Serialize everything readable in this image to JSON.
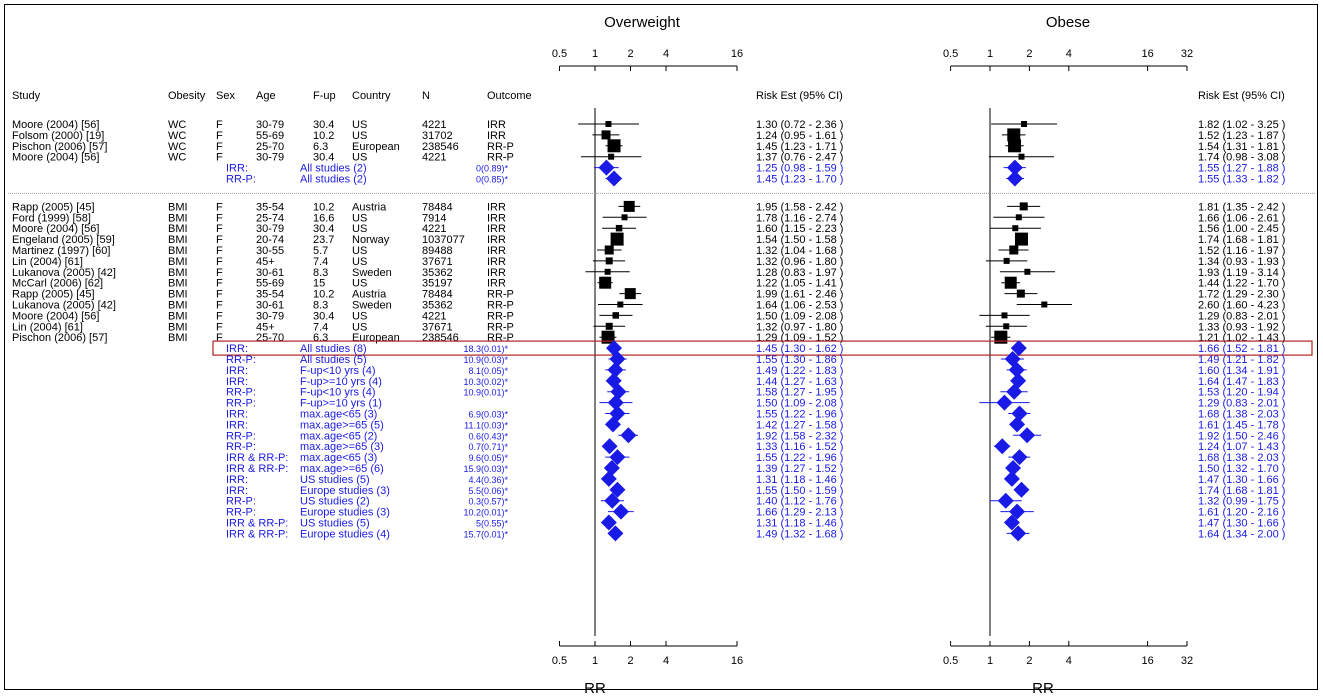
{
  "headers": {
    "study": "Study",
    "obesity": "Obesity",
    "sex": "Sex",
    "age": "Age",
    "fup": "F-up",
    "country": "Country",
    "n": "N",
    "outcome": "Outcome",
    "risk_ow": "Risk Est (95% CI)",
    "risk_ob": "Risk Est (95% CI)"
  },
  "panel_titles": {
    "overweight": "Overweight",
    "obese": "Obese"
  },
  "xlabel": "RR",
  "chart_data": {
    "type": "forest",
    "x_scale": "log",
    "reference_line": 1,
    "panels": [
      {
        "name": "Overweight",
        "xticks": [
          "0.5",
          "1",
          "2",
          "4",
          "16"
        ],
        "xlim": [
          0.5,
          16
        ]
      },
      {
        "name": "Obese",
        "xticks": [
          "0.5",
          "1",
          "2",
          "4",
          "16",
          "32"
        ],
        "xlim": [
          0.5,
          32
        ]
      }
    ],
    "rows": [
      {
        "kind": "study",
        "study": "Moore (2004) [56]",
        "obesity": "WC",
        "sex": "F",
        "age": "30-79",
        "fup": "30.4",
        "country": "US",
        "n": "4221",
        "outcome": "IRR",
        "ow": [
          1.3,
          0.72,
          2.36
        ],
        "ow_text": "1.30 (0.72 - 2.36 )",
        "ob": [
          1.82,
          1.02,
          3.25
        ],
        "ob_text": "1.82 (1.02 - 3.25 )",
        "ow_w": 0.3,
        "ob_w": 0.3
      },
      {
        "kind": "study",
        "study": "Folsom (2000) [19]",
        "obesity": "WC",
        "sex": "F",
        "age": "55-69",
        "fup": "10.2",
        "country": "US",
        "n": "31702",
        "outcome": "IRR",
        "ow": [
          1.24,
          0.95,
          1.61
        ],
        "ow_text": "1.24 (0.95 - 1.61 )",
        "ob": [
          1.52,
          1.23,
          1.87
        ],
        "ob_text": "1.52 (1.23 - 1.87 )",
        "ow_w": 0.6,
        "ob_w": 1.0
      },
      {
        "kind": "study",
        "study": "Pischon (2006) [57]",
        "obesity": "WC",
        "sex": "F",
        "age": "25-70",
        "fup": "6.3",
        "country": "European",
        "n": "238546",
        "outcome": "RR-P",
        "ow": [
          1.45,
          1.23,
          1.71
        ],
        "ow_text": "1.45 (1.23 - 1.71 )",
        "ob": [
          1.54,
          1.31,
          1.81
        ],
        "ob_text": "1.54 (1.31 - 1.81 )",
        "ow_w": 1.0,
        "ob_w": 1.0
      },
      {
        "kind": "study",
        "study": "Moore (2004) [56]",
        "obesity": "WC",
        "sex": "F",
        "age": "30-79",
        "fup": "30.4",
        "country": "US",
        "n": "4221",
        "outcome": "RR-P",
        "ow": [
          1.37,
          0.76,
          2.47
        ],
        "ow_text": "1.37 (0.76 - 2.47 )",
        "ob": [
          1.74,
          0.98,
          3.08
        ],
        "ob_text": "1.74 (0.98 - 3.08 )",
        "ow_w": 0.3,
        "ob_w": 0.3
      },
      {
        "kind": "summary",
        "outcome_label": "IRR:",
        "desc": "All studies (2)",
        "stat": "0(0.89)*",
        "ow": [
          1.25,
          0.98,
          1.59
        ],
        "ow_text": "1.25 (0.98 - 1.59 )",
        "ob": [
          1.55,
          1.27,
          1.88
        ],
        "ob_text": "1.55 (1.27 - 1.88 )"
      },
      {
        "kind": "summary",
        "outcome_label": "RR-P:",
        "desc": "All studies (2)",
        "stat": "0(0.85)*",
        "ow": [
          1.45,
          1.23,
          1.7
        ],
        "ow_text": "1.45 (1.23 - 1.70 )",
        "ob": [
          1.55,
          1.33,
          1.82
        ],
        "ob_text": "1.55 (1.33 - 1.82 )"
      },
      {
        "kind": "sep"
      },
      {
        "kind": "study",
        "study": "Rapp (2005) [45]",
        "obesity": "BMI",
        "sex": "F",
        "age": "35-54",
        "fup": "10.2",
        "country": "Austria",
        "n": "78484",
        "outcome": "IRR",
        "ow": [
          1.95,
          1.58,
          2.42
        ],
        "ow_text": "1.95 (1.58 - 2.42 )",
        "ob": [
          1.81,
          1.35,
          2.42
        ],
        "ob_text": "1.81 (1.35 - 2.42 )",
        "ow_w": 0.8,
        "ob_w": 0.5
      },
      {
        "kind": "study",
        "study": "Ford (1999) [58]",
        "obesity": "BMI",
        "sex": "F",
        "age": "25-74",
        "fup": "16.6",
        "country": "US",
        "n": "7914",
        "outcome": "IRR",
        "ow": [
          1.78,
          1.16,
          2.74
        ],
        "ow_text": "1.78 (1.16 - 2.74 )",
        "ob": [
          1.66,
          1.06,
          2.61
        ],
        "ob_text": "1.66 (1.06 - 2.61 )",
        "ow_w": 0.3,
        "ob_w": 0.3
      },
      {
        "kind": "study",
        "study": "Moore (2004) [56]",
        "obesity": "BMI",
        "sex": "F",
        "age": "30-79",
        "fup": "30.4",
        "country": "US",
        "n": "4221",
        "outcome": "IRR",
        "ow": [
          1.6,
          1.15,
          2.23
        ],
        "ow_text": "1.60 (1.15 - 2.23 )",
        "ob": [
          1.56,
          1.0,
          2.45
        ],
        "ob_text": "1.56 (1.00 - 2.45 )",
        "ow_w": 0.35,
        "ob_w": 0.3
      },
      {
        "kind": "study",
        "study": "Engeland (2005) [59]",
        "obesity": "BMI",
        "sex": "F",
        "age": "20-74",
        "fup": "23.7",
        "country": "Norway",
        "n": "1037077",
        "outcome": "IRR",
        "ow": [
          1.54,
          1.5,
          1.58
        ],
        "ow_text": "1.54 (1.50 - 1.58 )",
        "ob": [
          1.74,
          1.68,
          1.81
        ],
        "ob_text": "1.74 (1.68 - 1.81 )",
        "ow_w": 1.0,
        "ob_w": 1.0
      },
      {
        "kind": "study",
        "study": "Martinez (1997) [60]",
        "obesity": "BMI",
        "sex": "F",
        "age": "30-55",
        "fup": "5.7",
        "country": "US",
        "n": "89488",
        "outcome": "IRR",
        "ow": [
          1.32,
          1.04,
          1.68
        ],
        "ow_text": "1.32 (1.04 - 1.68 )",
        "ob": [
          1.52,
          1.16,
          1.97
        ],
        "ob_text": "1.52 (1.16 - 1.97 )",
        "ow_w": 0.6,
        "ob_w": 0.6
      },
      {
        "kind": "study",
        "study": "Lin (2004) [61]",
        "obesity": "BMI",
        "sex": "F",
        "age": "45+",
        "fup": "7.4",
        "country": "US",
        "n": "37671",
        "outcome": "IRR",
        "ow": [
          1.32,
          0.96,
          1.8
        ],
        "ow_text": "1.32 (0.96 - 1.80 )",
        "ob": [
          1.34,
          0.93,
          1.93
        ],
        "ob_text": "1.34 (0.93 - 1.93 )",
        "ow_w": 0.4,
        "ob_w": 0.3
      },
      {
        "kind": "study",
        "study": "Lukanova (2005) [42]",
        "obesity": "BMI",
        "sex": "F",
        "age": "30-61",
        "fup": "8.3",
        "country": "Sweden",
        "n": "35362",
        "outcome": "IRR",
        "ow": [
          1.28,
          0.83,
          1.97
        ],
        "ow_text": "1.28 (0.83 - 1.97 )",
        "ob": [
          1.93,
          1.19,
          3.14
        ],
        "ob_text": "1.93 (1.19 - 3.14 )",
        "ow_w": 0.3,
        "ob_w": 0.3
      },
      {
        "kind": "study",
        "study": "McCarl (2006) [62]",
        "obesity": "BMI",
        "sex": "F",
        "age": "55-69",
        "fup": "15",
        "country": "US",
        "n": "35197",
        "outcome": "IRR",
        "ow": [
          1.22,
          1.05,
          1.41
        ],
        "ow_text": "1.22 (1.05 - 1.41 )",
        "ob": [
          1.44,
          1.22,
          1.7
        ],
        "ob_text": "1.44 (1.22 - 1.70 )",
        "ow_w": 0.9,
        "ob_w": 0.9
      },
      {
        "kind": "study",
        "study": "Rapp (2005) [45]",
        "obesity": "BMI",
        "sex": "F",
        "age": "35-54",
        "fup": "10.2",
        "country": "Austria",
        "n": "78484",
        "outcome": "RR-P",
        "ow": [
          1.99,
          1.61,
          2.46
        ],
        "ow_text": "1.99 (1.61 - 2.46 )",
        "ob": [
          1.72,
          1.29,
          2.3
        ],
        "ob_text": "1.72 (1.29 - 2.30 )",
        "ow_w": 0.8,
        "ob_w": 0.5
      },
      {
        "kind": "study",
        "study": "Lukanova (2005) [42]",
        "obesity": "BMI",
        "sex": "F",
        "age": "30-61",
        "fup": "8.3",
        "country": "Sweden",
        "n": "35362",
        "outcome": "RR-P",
        "ow": [
          1.64,
          1.06,
          2.53
        ],
        "ow_text": "1.64 (1.06 - 2.53 )",
        "ob": [
          2.6,
          1.6,
          4.23
        ],
        "ob_text": "2.60 (1.60 - 4.23 )",
        "ow_w": 0.3,
        "ob_w": 0.3
      },
      {
        "kind": "study",
        "study": "Moore (2004) [56]",
        "obesity": "BMI",
        "sex": "F",
        "age": "30-79",
        "fup": "30.4",
        "country": "US",
        "n": "4221",
        "outcome": "RR-P",
        "ow": [
          1.5,
          1.09,
          2.08
        ],
        "ow_text": "1.50 (1.09 - 2.08 )",
        "ob": [
          1.29,
          0.83,
          2.01
        ],
        "ob_text": "1.29 (0.83 - 2.01 )",
        "ow_w": 0.35,
        "ob_w": 0.3
      },
      {
        "kind": "study",
        "study": "Lin (2004) [61]",
        "obesity": "BMI",
        "sex": "F",
        "age": "45+",
        "fup": "7.4",
        "country": "US",
        "n": "37671",
        "outcome": "RR-P",
        "ow": [
          1.32,
          0.97,
          1.8
        ],
        "ow_text": "1.32 (0.97 - 1.80 )",
        "ob": [
          1.33,
          0.93,
          1.92
        ],
        "ob_text": "1.33 (0.93 - 1.92 )",
        "ow_w": 0.4,
        "ob_w": 0.3
      },
      {
        "kind": "study",
        "study": "Pischon (2006) [57]",
        "obesity": "BMI",
        "sex": "F",
        "age": "25-70",
        "fup": "6.3",
        "country": "European",
        "n": "238546",
        "outcome": "RR-P",
        "ow": [
          1.29,
          1.09,
          1.52
        ],
        "ow_text": "1.29 (1.09 - 1.52 )",
        "ob": [
          1.21,
          1.02,
          1.43
        ],
        "ob_text": "1.21 (1.02 - 1.43 )",
        "ow_w": 1.0,
        "ob_w": 1.0
      },
      {
        "kind": "summary",
        "outcome_label": "IRR:",
        "desc": "All studies (8)",
        "stat": "18.3(0.01)*",
        "ow": [
          1.45,
          1.3,
          1.62
        ],
        "ow_text": "1.45 (1.30 - 1.62 )",
        "ob": [
          1.66,
          1.52,
          1.81
        ],
        "ob_text": "1.66 (1.52 - 1.81 )",
        "highlight": true
      },
      {
        "kind": "summary",
        "outcome_label": "RR-P:",
        "desc": "All studies (5)",
        "stat": "10.9(0.03)*",
        "ow": [
          1.55,
          1.3,
          1.86
        ],
        "ow_text": "1.55 (1.30 - 1.86 )",
        "ob": [
          1.49,
          1.21,
          1.82
        ],
        "ob_text": "1.49 (1.21 - 1.82 )"
      },
      {
        "kind": "summary",
        "outcome_label": "IRR:",
        "desc": "F-up<10 yrs (4)",
        "stat": "8.1(0.05)*",
        "ow": [
          1.49,
          1.22,
          1.83
        ],
        "ow_text": "1.49 (1.22 - 1.83 )",
        "ob": [
          1.6,
          1.34,
          1.91
        ],
        "ob_text": "1.60 (1.34 - 1.91 )"
      },
      {
        "kind": "summary",
        "outcome_label": "IRR:",
        "desc": "F-up>=10 yrs (4)",
        "stat": "10.3(0.02)*",
        "ow": [
          1.44,
          1.27,
          1.63
        ],
        "ow_text": "1.44 (1.27 - 1.63 )",
        "ob": [
          1.64,
          1.47,
          1.83
        ],
        "ob_text": "1.64 (1.47 - 1.83 )"
      },
      {
        "kind": "summary",
        "outcome_label": "RR-P:",
        "desc": "F-up<10 yrs (4)",
        "stat": "10.9(0.01)*",
        "ow": [
          1.58,
          1.27,
          1.95
        ],
        "ow_text": "1.58 (1.27 - 1.95 )",
        "ob": [
          1.53,
          1.2,
          1.94
        ],
        "ob_text": "1.53 (1.20 - 1.94 )"
      },
      {
        "kind": "summary",
        "outcome_label": "RR-P:",
        "desc": "F-up>=10 yrs (1)",
        "stat": "",
        "ow": [
          1.5,
          1.09,
          2.08
        ],
        "ow_text": "1.50 (1.09 - 2.08 )",
        "ob": [
          1.29,
          0.83,
          2.01
        ],
        "ob_text": "1.29 (0.83 - 2.01 )"
      },
      {
        "kind": "summary",
        "outcome_label": "IRR:",
        "desc": "max.age<65 (3)",
        "stat": "6.9(0.03)*",
        "ow": [
          1.55,
          1.22,
          1.96
        ],
        "ow_text": "1.55 (1.22 - 1.96 )",
        "ob": [
          1.68,
          1.38,
          2.03
        ],
        "ob_text": "1.68 (1.38 - 2.03 )"
      },
      {
        "kind": "summary",
        "outcome_label": "IRR:",
        "desc": "max.age>=65 (5)",
        "stat": "11.1(0.03)*",
        "ow": [
          1.42,
          1.27,
          1.58
        ],
        "ow_text": "1.42 (1.27 - 1.58 )",
        "ob": [
          1.61,
          1.45,
          1.78
        ],
        "ob_text": "1.61 (1.45 - 1.78 )"
      },
      {
        "kind": "summary",
        "outcome_label": "RR-P:",
        "desc": "max.age<65 (2)",
        "stat": "0.6(0.43)*",
        "ow": [
          1.92,
          1.58,
          2.32
        ],
        "ow_text": "1.92 (1.58 - 2.32 )",
        "ob": [
          1.92,
          1.5,
          2.46
        ],
        "ob_text": "1.92 (1.50 - 2.46 )"
      },
      {
        "kind": "summary",
        "outcome_label": "RR-P:",
        "desc": "max.age>=65 (3)",
        "stat": "0.7(0.71)*",
        "ow": [
          1.33,
          1.16,
          1.52
        ],
        "ow_text": "1.33 (1.16 - 1.52 )",
        "ob": [
          1.24,
          1.07,
          1.43
        ],
        "ob_text": "1.24 (1.07 - 1.43 )"
      },
      {
        "kind": "summary",
        "outcome_label": "IRR & RR-P:",
        "desc": "max.age<65 (3)",
        "stat": "9.6(0.05)*",
        "ow": [
          1.55,
          1.22,
          1.96
        ],
        "ow_text": "1.55 (1.22 - 1.96 )",
        "ob": [
          1.68,
          1.38,
          2.03
        ],
        "ob_text": "1.68 (1.38 - 2.03 )"
      },
      {
        "kind": "summary",
        "outcome_label": "IRR & RR-P:",
        "desc": "max.age>=65 (6)",
        "stat": "15.9(0.03)*",
        "ow": [
          1.39,
          1.27,
          1.52
        ],
        "ow_text": "1.39 (1.27 - 1.52 )",
        "ob": [
          1.5,
          1.32,
          1.7
        ],
        "ob_text": "1.50 (1.32 - 1.70 )"
      },
      {
        "kind": "summary",
        "outcome_label": "IRR:",
        "desc": "US studies (5)",
        "stat": "4.4(0.36)*",
        "ow": [
          1.31,
          1.18,
          1.46
        ],
        "ow_text": "1.31 (1.18 - 1.46 )",
        "ob": [
          1.47,
          1.3,
          1.66
        ],
        "ob_text": "1.47 (1.30 - 1.66 )"
      },
      {
        "kind": "summary",
        "outcome_label": "IRR:",
        "desc": "Europe studies (3)",
        "stat": "5.5(0.06)*",
        "ow": [
          1.55,
          1.5,
          1.59
        ],
        "ow_text": "1.55 (1.50 - 1.59 )",
        "ob": [
          1.74,
          1.68,
          1.81
        ],
        "ob_text": "1.74 (1.68 - 1.81 )"
      },
      {
        "kind": "summary",
        "outcome_label": "RR-P:",
        "desc": "US studies (2)",
        "stat": "0.3(0.57)*",
        "ow": [
          1.4,
          1.12,
          1.76
        ],
        "ow_text": "1.40 (1.12 - 1.76 )",
        "ob": [
          1.32,
          0.99,
          1.75
        ],
        "ob_text": "1.32 (0.99 - 1.75 )"
      },
      {
        "kind": "summary",
        "outcome_label": "RR-P:",
        "desc": "Europe studies (3)",
        "stat": "10.2(0.01)*",
        "ow": [
          1.66,
          1.29,
          2.13
        ],
        "ow_text": "1.66 (1.29 - 2.13 )",
        "ob": [
          1.61,
          1.2,
          2.16
        ],
        "ob_text": "1.61 (1.20 - 2.16 )"
      },
      {
        "kind": "summary",
        "outcome_label": "IRR & RR-P:",
        "desc": "US studies (5)",
        "stat": "5(0.55)*",
        "ow": [
          1.31,
          1.18,
          1.46
        ],
        "ow_text": "1.31 (1.18 - 1.46 )",
        "ob": [
          1.47,
          1.3,
          1.66
        ],
        "ob_text": "1.47 (1.30 - 1.66 )"
      },
      {
        "kind": "summary",
        "outcome_label": "IRR & RR-P:",
        "desc": "Europe studies (4)",
        "stat": "15.7(0.01)*",
        "ow": [
          1.49,
          1.32,
          1.68
        ],
        "ow_text": "1.49 (1.32 - 1.68 )",
        "ob": [
          1.64,
          1.34,
          2.0
        ],
        "ob_text": "1.64 (1.34 - 2.00 )"
      }
    ]
  },
  "colors": {
    "summary": "#1a1ae6",
    "highlight_box": "#b22222",
    "separator": "#999999"
  }
}
